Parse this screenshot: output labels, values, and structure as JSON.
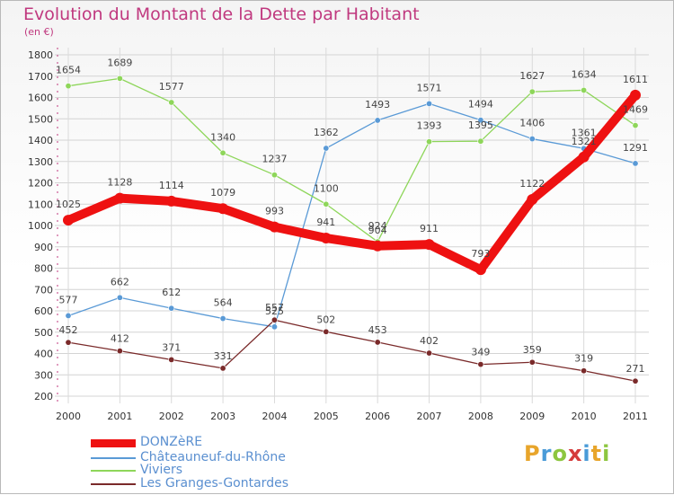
{
  "header": {
    "title": "Evolution du Montant de la Dette par Habitant",
    "unit": "(en €)"
  },
  "logo": {
    "text": "Proxiti",
    "colors": [
      "#e8a52b",
      "#4a9bd8",
      "#8dc63f",
      "#d53c3c",
      "#4a9bd8",
      "#e8a52b",
      "#8dc63f"
    ]
  },
  "chart_data": {
    "type": "line",
    "title": "Evolution du Montant de la Dette par Habitant",
    "ylabel": "(en €)",
    "xlabel": "",
    "x": [
      "2000",
      "2001",
      "2002",
      "2003",
      "2004",
      "2005",
      "2006",
      "2007",
      "2008",
      "2009",
      "2010",
      "2011"
    ],
    "ylim": [
      200,
      1800
    ],
    "yticks": [
      200,
      300,
      400,
      500,
      600,
      700,
      800,
      900,
      1000,
      1100,
      1200,
      1300,
      1400,
      1500,
      1600,
      1700,
      1800
    ],
    "grid": true,
    "legend_position": "bottom-left",
    "series": [
      {
        "name": "DONZèRE",
        "color": "#ee1111",
        "values": [
          1025,
          1128,
          1114,
          1079,
          993,
          941,
          904,
          911,
          793,
          1122,
          1321,
          1611
        ],
        "labels": [
          "1025",
          "1128",
          "1114",
          "1079",
          "993",
          "941",
          "904",
          "911",
          "793",
          "1122",
          "1321",
          "1611"
        ]
      },
      {
        "name": "Châteauneuf-du-Rhône",
        "color": "#5a9ad6",
        "values": [
          577,
          662,
          612,
          564,
          525,
          1362,
          1493,
          1571,
          1494,
          1406,
          1361,
          1291
        ],
        "labels": [
          "577",
          "662",
          "612",
          "564",
          "525",
          "1362",
          "1493",
          "1571",
          "1494",
          "1406",
          "1361",
          "1291"
        ]
      },
      {
        "name": "Viviers",
        "color": "#8ed65a",
        "values": [
          1654,
          1689,
          1577,
          1340,
          1237,
          1100,
          924,
          1393,
          1395,
          1627,
          1634,
          1469
        ],
        "labels": [
          "1654",
          "1689",
          "1577",
          "1340",
          "1237",
          "1100",
          "924",
          "1393",
          "1395",
          "1627",
          "1634",
          "1469"
        ]
      },
      {
        "name": "Les Granges-Gontardes",
        "color": "#7a2a2a",
        "values": [
          452,
          412,
          371,
          331,
          557,
          502,
          453,
          402,
          349,
          359,
          319,
          271
        ],
        "labels": [
          "452",
          "412",
          "371",
          "331",
          "557",
          "502",
          "453",
          "402",
          "349",
          "359",
          "319",
          "271"
        ]
      }
    ]
  }
}
